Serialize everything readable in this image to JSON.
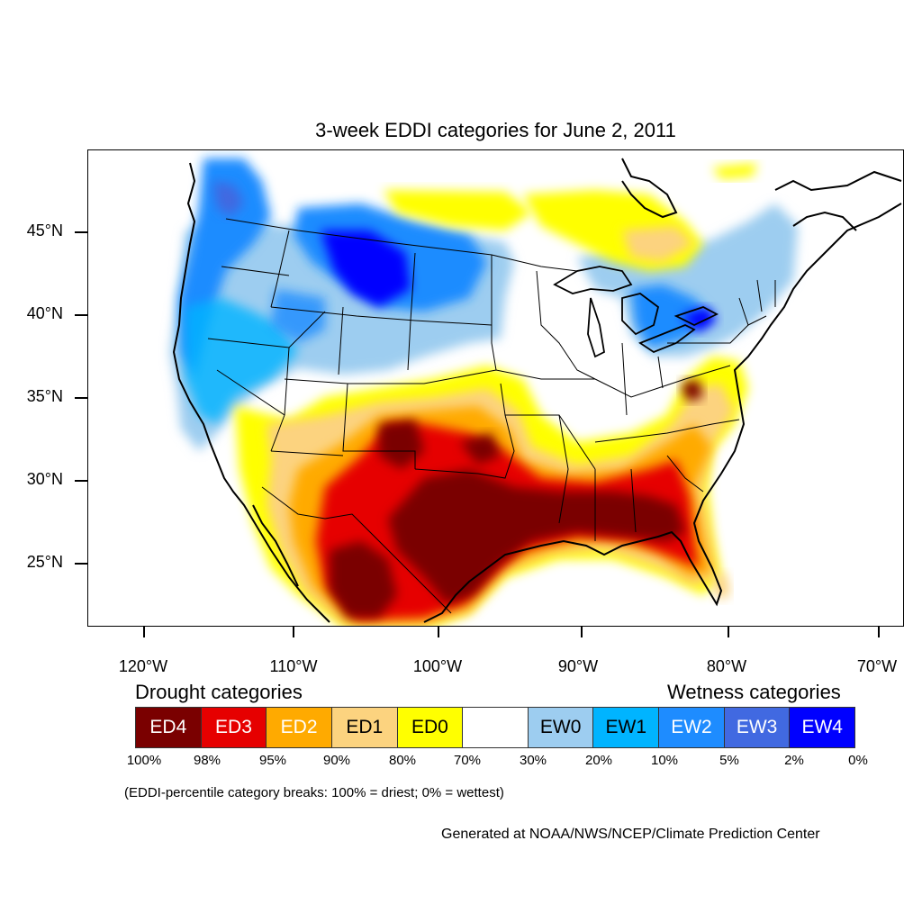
{
  "title": "3-week EDDI categories for June 2, 2011",
  "lat_labels": [
    "45°N",
    "40°N",
    "35°N",
    "30°N",
    "25°N"
  ],
  "lon_labels": [
    "120°W",
    "110°W",
    "100°W",
    "90°W",
    "80°W",
    "70°W"
  ],
  "legend": {
    "drought_heading": "Drought categories",
    "wetness_heading": "Wetness categories",
    "categories": [
      {
        "label": "ED4",
        "color": "#7a0000",
        "text_color": "#ffffff"
      },
      {
        "label": "ED3",
        "color": "#e60000",
        "text_color": "#ffffff"
      },
      {
        "label": "ED2",
        "color": "#ffaa00",
        "text_color": "#ffffff"
      },
      {
        "label": "ED1",
        "color": "#fcd37f",
        "text_color": "#000000"
      },
      {
        "label": "ED0",
        "color": "#ffff00",
        "text_color": "#000000"
      },
      {
        "label": "",
        "color": "#ffffff",
        "text_color": "#000000"
      },
      {
        "label": "EW0",
        "color": "#9dcdf0",
        "text_color": "#000000"
      },
      {
        "label": "EW1",
        "color": "#00b4ff",
        "text_color": "#000000"
      },
      {
        "label": "EW2",
        "color": "#1e8cff",
        "text_color": "#ffffff"
      },
      {
        "label": "EW3",
        "color": "#4169e1",
        "text_color": "#ffffff"
      },
      {
        "label": "EW4",
        "color": "#0000ff",
        "text_color": "#ffffff"
      }
    ],
    "percentiles": [
      "100%",
      "98%",
      "95%",
      "90%",
      "80%",
      "70%",
      "30%",
      "20%",
      "10%",
      "5%",
      "2%",
      "0%"
    ]
  },
  "note": "(EDDI-percentile category breaks: 100% = driest; 0% = wettest)",
  "credit": "Generated at NOAA/NWS/NCEP/Climate Prediction Center"
}
